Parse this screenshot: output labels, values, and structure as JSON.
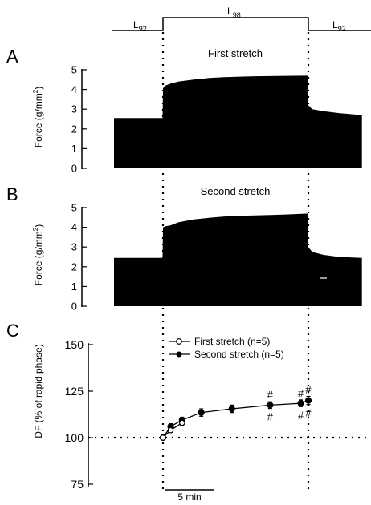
{
  "protocol": {
    "segments": [
      {
        "label": "L",
        "sub": "92"
      },
      {
        "label": "L",
        "sub": "98"
      },
      {
        "label": "L",
        "sub": "92"
      }
    ]
  },
  "panels": {
    "a": {
      "letter": "A",
      "title": "First stretch"
    },
    "b": {
      "letter": "B",
      "title": "Second stretch"
    },
    "c": {
      "letter": "C"
    }
  },
  "scale_bar": {
    "label": "5 min"
  },
  "chart_data": [
    {
      "type": "area",
      "panel": "A",
      "title": "First stretch",
      "ylabel": "Force (g/mm²)",
      "ylabel_parts": [
        "Force (g/mm",
        "2",
        ")"
      ],
      "yticks": [
        0,
        1,
        2,
        3,
        4,
        5
      ],
      "ylim": [
        0,
        5
      ],
      "grid": false,
      "x_minutes": [
        -7,
        -0.05,
        0,
        0.3,
        1,
        2,
        4,
        6,
        8,
        10,
        12,
        14,
        16,
        18.95,
        19,
        19.5,
        21,
        23,
        26
      ],
      "y_force": [
        2.55,
        2.55,
        4.05,
        4.2,
        4.3,
        4.4,
        4.5,
        4.58,
        4.62,
        4.65,
        4.67,
        4.68,
        4.69,
        4.7,
        3.2,
        3.0,
        2.9,
        2.8,
        2.7
      ]
    },
    {
      "type": "area",
      "panel": "B",
      "title": "Second stretch",
      "ylabel": "Force (g/mm²)",
      "ylabel_parts": [
        "Force (g/mm",
        "2",
        ")"
      ],
      "yticks": [
        0,
        1,
        2,
        3,
        4,
        5
      ],
      "ylim": [
        0,
        5
      ],
      "grid": false,
      "x_minutes": [
        -7,
        -0.05,
        0,
        0.3,
        1,
        2,
        4,
        6,
        8,
        10,
        12,
        14,
        16,
        18.95,
        19,
        19.5,
        21,
        23,
        26
      ],
      "y_force": [
        2.45,
        2.45,
        4.0,
        4.05,
        4.1,
        4.25,
        4.4,
        4.48,
        4.55,
        4.58,
        4.6,
        4.62,
        4.65,
        4.7,
        3.0,
        2.75,
        2.6,
        2.5,
        2.45
      ]
    },
    {
      "type": "line",
      "panel": "C",
      "ylabel": "DF (% of rapid phase)",
      "yticks": [
        75,
        100,
        125,
        150
      ],
      "ylim": [
        75,
        150
      ],
      "reference_y": 100,
      "grid": false,
      "legend_position": "top-center",
      "series": [
        {
          "name": "First stretch (n=5)",
          "marker": "open-circle",
          "x_minutes": [
            0,
            1,
            2.5
          ],
          "y": [
            100,
            104,
            108
          ],
          "err": [
            0.8,
            1.2,
            1.3
          ]
        },
        {
          "name": "Second stretch (n=5)",
          "marker": "filled-circle",
          "x_minutes": [
            0,
            1,
            2.5,
            5,
            9,
            14,
            18,
            19
          ],
          "y": [
            100,
            106,
            109.5,
            113.5,
            115.5,
            117.5,
            118.5,
            120
          ],
          "err": [
            0.8,
            1.5,
            1.5,
            2,
            2,
            1.8,
            1.8,
            2.2
          ]
        }
      ],
      "annotations": [
        {
          "text": "#",
          "x_minutes": 14,
          "position": "above"
        },
        {
          "text": "#",
          "x_minutes": 14,
          "position": "below"
        },
        {
          "text": "#",
          "x_minutes": 18,
          "position": "above"
        },
        {
          "text": "#",
          "x_minutes": 18,
          "position": "below"
        },
        {
          "text": "#",
          "x_minutes": 19,
          "position": "above"
        },
        {
          "text": "#",
          "x_minutes": 19,
          "position": "below"
        }
      ]
    }
  ]
}
